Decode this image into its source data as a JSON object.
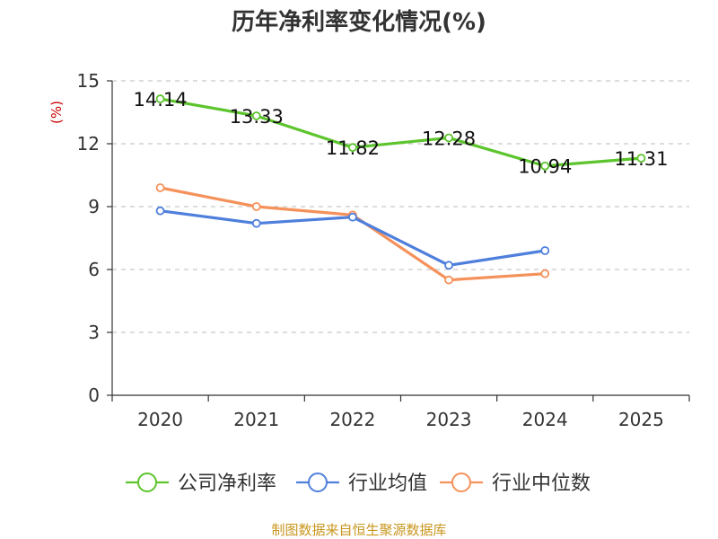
{
  "chart_data": {
    "type": "line",
    "title": "历年净利率变化情况(%)",
    "xlabel": "",
    "ylabel": "(%)",
    "ylim": [
      0,
      15
    ],
    "yticks": [
      0,
      3,
      6,
      9,
      12,
      15
    ],
    "categories": [
      "2020",
      "2021",
      "2022",
      "2023",
      "2024",
      "2025"
    ],
    "grid": true,
    "legend_position": "bottom",
    "series": [
      {
        "name": "公司净利率",
        "color": "#5cc42c",
        "values": [
          14.14,
          13.33,
          11.82,
          12.28,
          10.94,
          11.31
        ],
        "labels": [
          "14.14",
          "13.33",
          "11.82",
          "12.28",
          "10.94",
          "11.31"
        ],
        "show_labels": true
      },
      {
        "name": "行业均值",
        "color": "#4f7fdc",
        "values": [
          8.8,
          8.2,
          8.5,
          6.2,
          6.9,
          null
        ],
        "show_labels": false
      },
      {
        "name": "行业中位数",
        "color": "#f5915a",
        "values": [
          9.9,
          9.0,
          8.6,
          5.5,
          5.8,
          null
        ],
        "show_labels": false
      }
    ]
  },
  "source": "制图数据来自恒生聚源数据库"
}
